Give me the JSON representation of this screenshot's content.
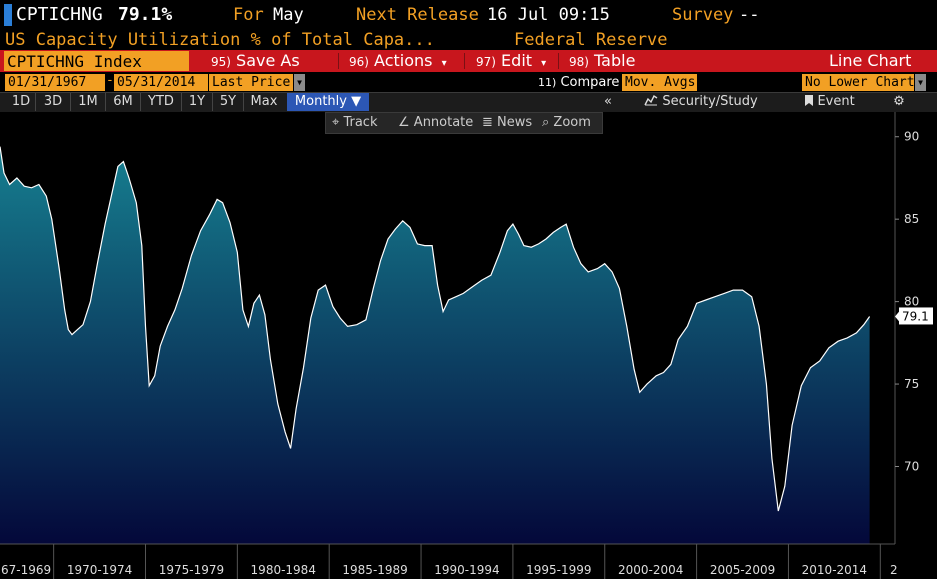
{
  "header": {
    "ticker": "CPTICHNG",
    "last_value": "79.1%",
    "for_label": "For",
    "for_value": "May",
    "next_release_label": "Next Release",
    "next_release_value": "16 Jul 09:15",
    "survey_label": "Survey",
    "survey_value": "--",
    "description": "US Capacity Utilization % of Total Capa...",
    "source": "Federal Reserve"
  },
  "menubar": {
    "security": "CPTICHNG Index",
    "items": [
      {
        "num": "95)",
        "label": "Save As",
        "arrow": ""
      },
      {
        "num": "96)",
        "label": "Actions",
        "arrow": "▾"
      },
      {
        "num": "97)",
        "label": "Edit",
        "arrow": "▾"
      },
      {
        "num": "98)",
        "label": "Table",
        "arrow": ""
      }
    ],
    "chart_type": "Line Chart"
  },
  "options": {
    "start_date": "01/31/1967",
    "end_date": "05/31/2014",
    "price_field": "Last Price",
    "compare_num": "11)",
    "compare_label": "Compare",
    "compare_value": "Mov. Avgs",
    "lower_chart": "No Lower Chart"
  },
  "toolbar": {
    "ranges": [
      "1D",
      "3D",
      "1M",
      "6M",
      "YTD",
      "1Y",
      "5Y",
      "Max"
    ],
    "frequency": "Monthly ▼",
    "collapse": "«",
    "security_study": "Security/Study",
    "event": "Event",
    "settings_icon": "gear-icon"
  },
  "chart_tools": {
    "track": "Track",
    "annotate": "Annotate",
    "news": "News",
    "zoom": "Zoom"
  },
  "chart_data": {
    "type": "area",
    "x_unit": "year",
    "xlim": [
      1967.08,
      2015.8
    ],
    "ylim": [
      65.3,
      91.5
    ],
    "yticks": [
      70,
      75,
      80,
      85,
      90
    ],
    "xtick_labels": [
      "67-1969",
      "1970-1974",
      "1975-1979",
      "1980-1984",
      "1985-1989",
      "1990-1994",
      "1995-1999",
      "2000-2004",
      "2005-2009",
      "2010-2014",
      "2"
    ],
    "last_label": "79.1",
    "line_color": "#ffffff",
    "fill_top_color": "#167f90",
    "fill_bottom_color": "#04083a",
    "x": [
      1967.08,
      1967.3,
      1967.6,
      1968.0,
      1968.4,
      1968.8,
      1969.2,
      1969.6,
      1969.9,
      1970.3,
      1970.6,
      1970.8,
      1971.0,
      1971.3,
      1971.6,
      1972.0,
      1972.4,
      1972.8,
      1973.2,
      1973.5,
      1973.8,
      1974.1,
      1974.5,
      1974.8,
      1975.0,
      1975.2,
      1975.5,
      1975.8,
      1976.2,
      1976.6,
      1977.0,
      1977.5,
      1978.0,
      1978.5,
      1978.9,
      1979.2,
      1979.6,
      1980.0,
      1980.3,
      1980.6,
      1980.9,
      1981.2,
      1981.5,
      1981.8,
      1982.2,
      1982.6,
      1982.9,
      1983.2,
      1983.6,
      1984.0,
      1984.4,
      1984.8,
      1985.2,
      1985.6,
      1986.0,
      1986.5,
      1987.0,
      1987.4,
      1987.8,
      1988.2,
      1988.6,
      1989.0,
      1989.4,
      1989.8,
      1990.2,
      1990.6,
      1990.9,
      1991.2,
      1991.5,
      1991.9,
      1992.3,
      1992.8,
      1993.3,
      1993.8,
      1994.3,
      1994.7,
      1995.0,
      1995.3,
      1995.6,
      1996.0,
      1996.4,
      1996.8,
      1997.2,
      1997.6,
      1997.9,
      1998.3,
      1998.7,
      1999.1,
      1999.6,
      2000.0,
      2000.4,
      2000.8,
      2001.2,
      2001.6,
      2001.9,
      2002.3,
      2002.8,
      2003.2,
      2003.6,
      2004.0,
      2004.5,
      2005.0,
      2005.5,
      2006.0,
      2006.5,
      2007.0,
      2007.5,
      2008.0,
      2008.4,
      2008.8,
      2009.1,
      2009.45,
      2009.8,
      2010.2,
      2010.7,
      2011.2,
      2011.7,
      2012.2,
      2012.7,
      2013.2,
      2013.7,
      2014.1,
      2014.42
    ],
    "values": [
      89.4,
      87.8,
      87.1,
      87.5,
      87.0,
      86.9,
      87.1,
      86.4,
      85.0,
      82.0,
      79.5,
      78.3,
      78.0,
      78.3,
      78.6,
      80.0,
      82.4,
      84.7,
      86.7,
      88.2,
      88.5,
      87.5,
      86.0,
      83.4,
      78.5,
      74.9,
      75.5,
      77.3,
      78.5,
      79.5,
      80.8,
      82.8,
      84.3,
      85.3,
      86.2,
      86.0,
      84.8,
      83.0,
      79.5,
      78.5,
      79.9,
      80.4,
      79.2,
      76.5,
      73.8,
      72.1,
      71.1,
      73.5,
      76.0,
      79.0,
      80.7,
      81.0,
      79.7,
      79.0,
      78.5,
      78.6,
      78.9,
      80.8,
      82.5,
      83.8,
      84.4,
      84.9,
      84.5,
      83.5,
      83.4,
      83.4,
      81.0,
      79.4,
      80.1,
      80.3,
      80.5,
      80.9,
      81.3,
      81.6,
      83.0,
      84.3,
      84.7,
      84.1,
      83.4,
      83.3,
      83.5,
      83.8,
      84.2,
      84.5,
      84.7,
      83.3,
      82.3,
      81.8,
      82.0,
      82.3,
      81.8,
      80.8,
      78.5,
      75.9,
      74.5,
      75.0,
      75.5,
      75.7,
      76.2,
      77.7,
      78.5,
      79.9,
      80.1,
      80.3,
      80.5,
      80.7,
      80.7,
      80.3,
      78.5,
      75.0,
      70.5,
      67.3,
      68.8,
      72.5,
      74.9,
      76.0,
      76.4,
      77.2,
      77.6,
      77.8,
      78.1,
      78.6,
      79.1
    ]
  }
}
